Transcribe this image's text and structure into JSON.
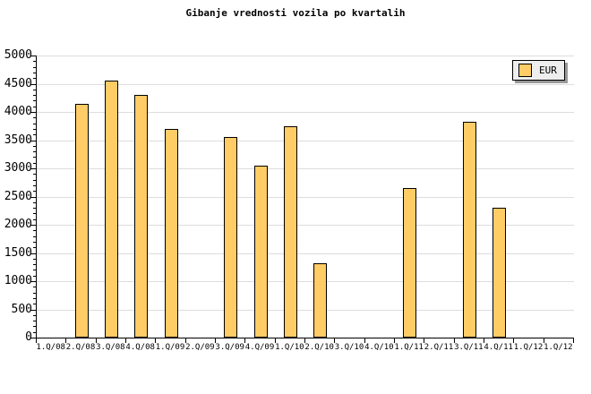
{
  "title": "Gibanje vrednosti vozila po kvartalih",
  "legend": {
    "label": "EUR"
  },
  "colors": {
    "bar_fill": "#FFCC66",
    "bar_border": "#000000",
    "grid": "#DDDDDD",
    "axis": "#000000",
    "legend_bg": "#EEEEEE",
    "legend_shadow": "#999999",
    "background": "#FFFFFF"
  },
  "chart_data": {
    "type": "bar",
    "title": "Gibanje vrednosti vozila po kvartalih",
    "categories": [
      "1.Q/08",
      "2.Q/08",
      "3.Q/08",
      "4.Q/08",
      "1.Q/09",
      "2.Q/09",
      "3.Q/09",
      "4.Q/09",
      "1.Q/10",
      "2.Q/10",
      "3.Q/10",
      "4.Q/10",
      "1.Q/11",
      "2.Q/11",
      "3.Q/11",
      "4.Q/11",
      "1.Q/12",
      "1.Q/12"
    ],
    "series": [
      {
        "name": "EUR",
        "values": [
          null,
          4150,
          4550,
          4300,
          3700,
          null,
          3550,
          3050,
          3750,
          1320,
          null,
          null,
          2650,
          null,
          3820,
          2300,
          null,
          null
        ]
      }
    ],
    "xlabel": "",
    "ylabel": "",
    "ylim": [
      0,
      5000
    ],
    "ytick_step": 500,
    "y_minor_step": 100,
    "ytick_labels": [
      "0",
      "500",
      "1000",
      "1500",
      "2000",
      "2500",
      "3000",
      "3500",
      "4000",
      "4500",
      "5000"
    ],
    "grid": true,
    "legend_position": "top-right"
  }
}
